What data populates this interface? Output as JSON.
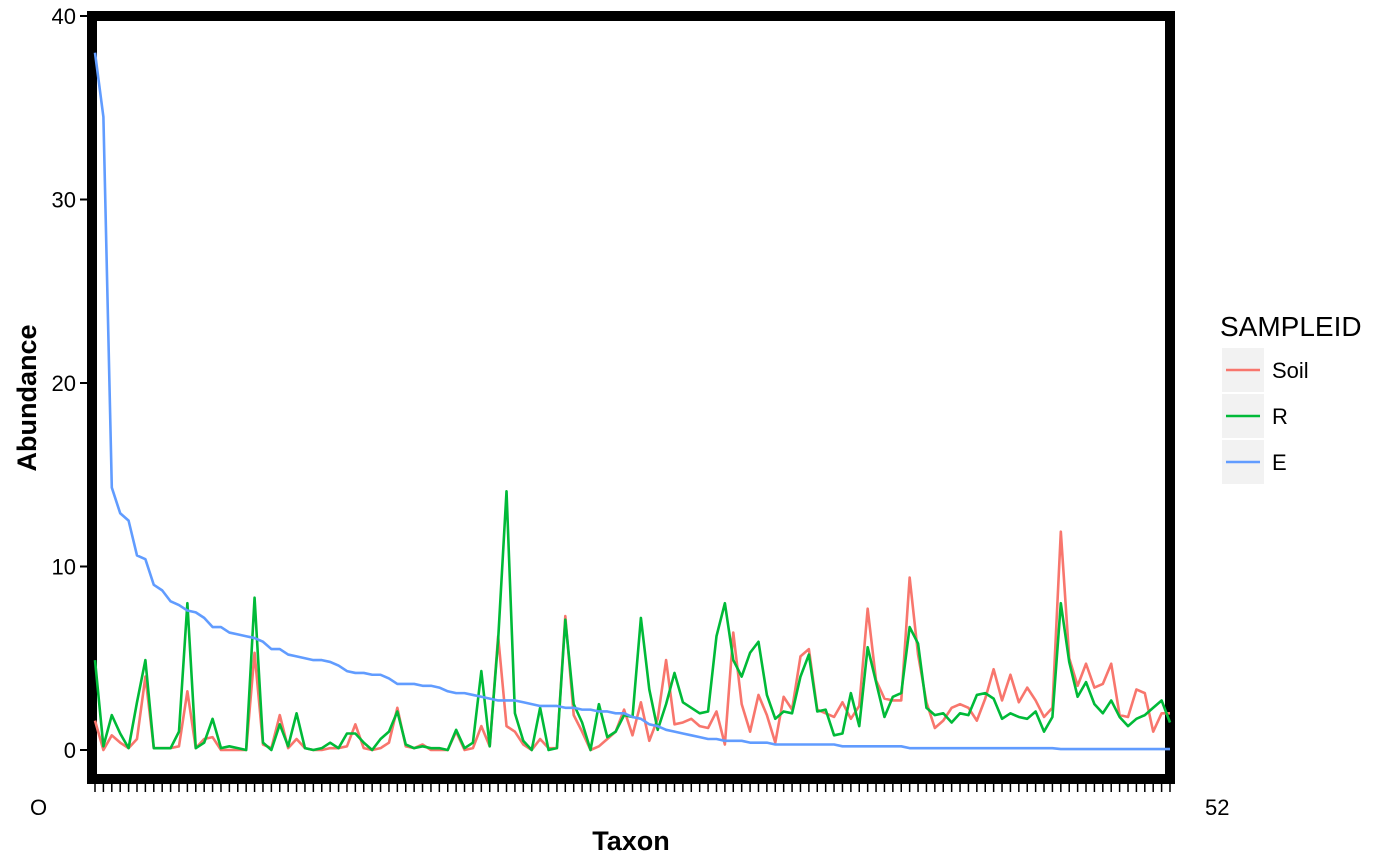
{
  "chart_data": {
    "type": "line",
    "xlabel": "Taxon",
    "ylabel": "Abundance",
    "ylim": [
      0,
      40
    ],
    "yticks": [
      0,
      10,
      20,
      30,
      40
    ],
    "grid": false,
    "legend": {
      "title": "SAMPLEID",
      "placement": "right"
    },
    "x_tick_labels_note": "x tick labels are overlapping taxon ids and unreadable; first appears to start with 'O'",
    "x_tick_first": "O",
    "x_tick_last": "52",
    "series": [
      {
        "name": "Soil",
        "color": "#F8766D",
        "values": [
          1.6,
          0.0,
          0.8,
          0.4,
          0.1,
          0.6,
          4.0,
          0.1,
          0.1,
          0.1,
          0.2,
          3.2,
          0.1,
          0.6,
          0.7,
          0.0,
          0.0,
          0.0,
          0.0,
          5.3,
          0.3,
          0.1,
          1.9,
          0.1,
          0.6,
          0.1,
          0.0,
          0.0,
          0.1,
          0.1,
          0.2,
          1.4,
          0.1,
          0.0,
          0.1,
          0.4,
          2.3,
          0.2,
          0.1,
          0.3,
          0.0,
          0.0,
          0.0,
          1.0,
          0.0,
          0.1,
          1.3,
          0.2,
          6.2,
          1.3,
          1.0,
          0.3,
          0.0,
          0.6,
          0.1,
          0.1,
          7.3,
          1.9,
          1.0,
          0.0,
          0.2,
          0.6,
          1.0,
          2.2,
          0.8,
          2.6,
          0.5,
          1.7,
          4.9,
          1.4,
          1.5,
          1.7,
          1.3,
          1.2,
          2.1,
          0.3,
          6.4,
          2.5,
          1.0,
          3.0,
          1.9,
          0.4,
          2.9,
          2.2,
          5.1,
          5.5,
          2.2,
          2.0,
          1.8,
          2.6,
          1.7,
          2.4,
          7.7,
          3.8,
          2.8,
          2.7,
          2.7,
          9.4,
          5.2,
          2.6,
          1.2,
          1.6,
          2.3,
          2.5,
          2.3,
          1.6,
          2.8,
          4.4,
          2.7,
          4.1,
          2.6,
          3.4,
          2.7,
          1.8,
          2.3,
          11.9,
          5.0,
          3.5,
          4.7,
          3.4,
          3.6,
          4.7,
          1.9,
          1.8,
          3.3,
          3.1,
          1.0,
          2.0,
          2.0
        ]
      },
      {
        "name": "R",
        "color": "#00BA38",
        "values": [
          4.9,
          0.2,
          1.9,
          0.9,
          0.1,
          2.6,
          4.9,
          0.1,
          0.1,
          0.1,
          1.0,
          8.0,
          0.1,
          0.4,
          1.7,
          0.1,
          0.2,
          0.1,
          0.0,
          8.3,
          0.4,
          0.0,
          1.4,
          0.2,
          2.0,
          0.1,
          0.0,
          0.1,
          0.4,
          0.1,
          0.9,
          0.9,
          0.4,
          0.0,
          0.6,
          1.0,
          2.1,
          0.3,
          0.1,
          0.2,
          0.1,
          0.1,
          0.0,
          1.1,
          0.1,
          0.4,
          4.3,
          0.2,
          6.0,
          14.1,
          2.0,
          0.5,
          0.0,
          2.3,
          0.0,
          0.1,
          7.1,
          2.5,
          1.5,
          0.0,
          2.5,
          0.7,
          1.0,
          1.9,
          1.8,
          7.2,
          3.3,
          1.1,
          2.5,
          4.2,
          2.6,
          2.3,
          2.0,
          2.1,
          6.2,
          8.0,
          4.9,
          4.0,
          5.3,
          5.9,
          3.0,
          1.7,
          2.1,
          2.0,
          4.0,
          5.2,
          2.1,
          2.2,
          0.8,
          0.9,
          3.1,
          1.3,
          5.6,
          3.7,
          1.8,
          2.9,
          3.1,
          6.7,
          5.8,
          2.3,
          1.9,
          2.0,
          1.5,
          2.0,
          1.9,
          3.0,
          3.1,
          2.8,
          1.7,
          2.0,
          1.8,
          1.7,
          2.1,
          1.0,
          1.8,
          8.0,
          4.8,
          2.9,
          3.7,
          2.5,
          2.0,
          2.7,
          1.8,
          1.3,
          1.7,
          1.9,
          2.3,
          2.7,
          1.5
        ]
      },
      {
        "name": "E",
        "color": "#619CFF",
        "values": [
          38.0,
          34.5,
          14.3,
          12.9,
          12.5,
          10.6,
          10.4,
          9.0,
          8.7,
          8.1,
          7.9,
          7.6,
          7.5,
          7.2,
          6.7,
          6.7,
          6.4,
          6.3,
          6.2,
          6.1,
          5.9,
          5.5,
          5.5,
          5.2,
          5.1,
          5.0,
          4.9,
          4.9,
          4.8,
          4.6,
          4.3,
          4.2,
          4.2,
          4.1,
          4.1,
          3.9,
          3.6,
          3.6,
          3.6,
          3.5,
          3.5,
          3.4,
          3.2,
          3.1,
          3.1,
          3.0,
          2.9,
          2.8,
          2.7,
          2.7,
          2.7,
          2.6,
          2.5,
          2.4,
          2.4,
          2.4,
          2.3,
          2.3,
          2.2,
          2.2,
          2.1,
          2.1,
          2.0,
          2.0,
          1.8,
          1.7,
          1.4,
          1.3,
          1.1,
          1.0,
          0.9,
          0.8,
          0.7,
          0.6,
          0.6,
          0.5,
          0.5,
          0.5,
          0.4,
          0.4,
          0.4,
          0.3,
          0.3,
          0.3,
          0.3,
          0.3,
          0.3,
          0.3,
          0.3,
          0.2,
          0.2,
          0.2,
          0.2,
          0.2,
          0.2,
          0.2,
          0.2,
          0.1,
          0.1,
          0.1,
          0.1,
          0.1,
          0.1,
          0.1,
          0.1,
          0.1,
          0.1,
          0.1,
          0.1,
          0.1,
          0.1,
          0.1,
          0.1,
          0.1,
          0.1,
          0.05,
          0.05,
          0.05,
          0.05,
          0.05,
          0.05,
          0.05,
          0.05,
          0.05,
          0.05,
          0.05,
          0.05,
          0.05,
          0.05
        ]
      }
    ]
  }
}
